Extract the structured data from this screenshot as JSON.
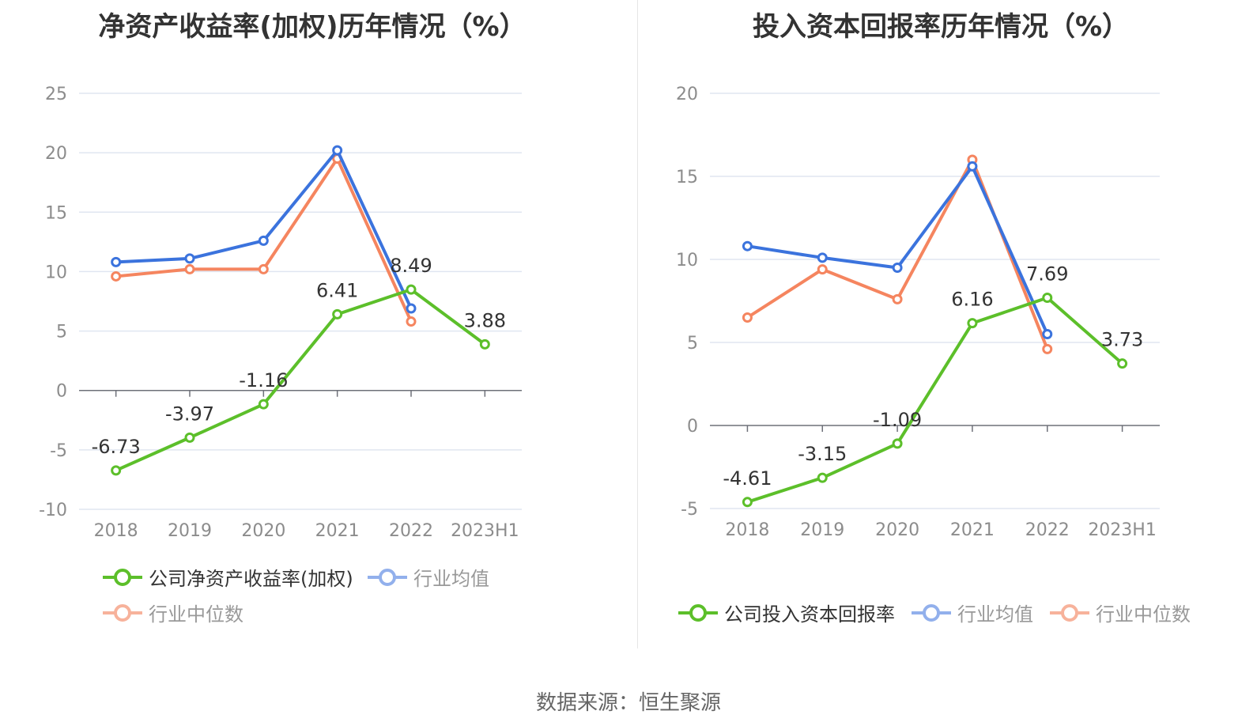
{
  "source_text": "数据来源：恒生聚源",
  "colors": {
    "company": "#5cbf2a",
    "avg": "#3b73dd",
    "median": "#f5855f",
    "grid": "#e0e6f1",
    "axis": "#6e7079",
    "label": "#8c8c8c"
  },
  "chart_data": [
    {
      "type": "line",
      "title": "净资产收益率(加权)历年情况（%）",
      "categories": [
        "2018",
        "2019",
        "2020",
        "2021",
        "2022",
        "2023H1"
      ],
      "ylim": [
        -10,
        25
      ],
      "yticks": [
        -10,
        -5,
        0,
        5,
        10,
        15,
        20,
        25
      ],
      "grid": true,
      "legend_position": "bottom",
      "series": [
        {
          "name": "公司净资产收益率(加权)",
          "key": "company",
          "values": [
            -6.73,
            -3.97,
            -1.16,
            6.41,
            8.49,
            3.88
          ],
          "labels": [
            "-6.73",
            "-3.97",
            "-1.16",
            "6.41",
            "8.49",
            "3.88"
          ]
        },
        {
          "name": "行业均值",
          "key": "avg",
          "values": [
            10.8,
            11.1,
            12.6,
            20.2,
            6.9,
            null
          ]
        },
        {
          "name": "行业中位数",
          "key": "median",
          "values": [
            9.6,
            10.2,
            10.2,
            19.5,
            5.8,
            null
          ]
        }
      ]
    },
    {
      "type": "line",
      "title": "投入资本回报率历年情况（%）",
      "categories": [
        "2018",
        "2019",
        "2020",
        "2021",
        "2022",
        "2023H1"
      ],
      "ylim": [
        -5,
        20
      ],
      "yticks": [
        -5,
        0,
        5,
        10,
        15,
        20
      ],
      "grid": true,
      "legend_position": "bottom",
      "series": [
        {
          "name": "公司投入资本回报率",
          "key": "company",
          "values": [
            -4.61,
            -3.15,
            -1.09,
            6.16,
            7.69,
            3.73
          ],
          "labels": [
            "-4.61",
            "-3.15",
            "-1.09",
            "6.16",
            "7.69",
            "3.73"
          ]
        },
        {
          "name": "行业均值",
          "key": "avg",
          "values": [
            10.8,
            10.1,
            9.5,
            15.6,
            5.5,
            null
          ]
        },
        {
          "name": "行业中位数",
          "key": "median",
          "values": [
            6.5,
            9.4,
            7.6,
            16.0,
            4.6,
            null
          ]
        }
      ]
    }
  ]
}
